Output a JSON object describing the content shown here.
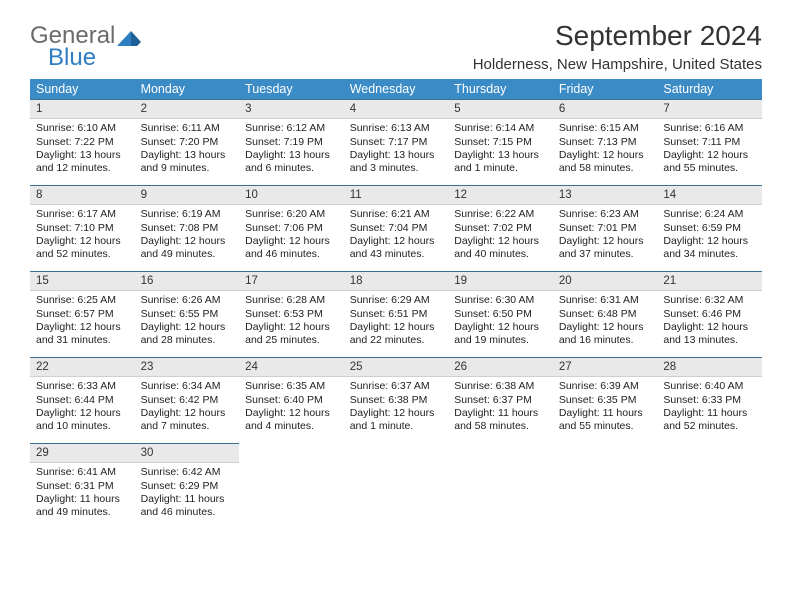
{
  "logo": {
    "word1": "General",
    "word2": "Blue"
  },
  "title": "September 2024",
  "location": "Holderness, New Hampshire, United States",
  "colors": {
    "header_bg": "#3b8bc6",
    "header_text": "#ffffff",
    "daynum_bg": "#e9e9e9",
    "daynum_border_top": "#3b6f93",
    "body_text": "#222222",
    "logo_gray": "#6b6b6b",
    "logo_blue": "#2f7ec2"
  },
  "weekdays": [
    "Sunday",
    "Monday",
    "Tuesday",
    "Wednesday",
    "Thursday",
    "Friday",
    "Saturday"
  ],
  "weeks": [
    [
      {
        "n": "1",
        "sunrise": "Sunrise: 6:10 AM",
        "sunset": "Sunset: 7:22 PM",
        "daylight": "Daylight: 13 hours and 12 minutes."
      },
      {
        "n": "2",
        "sunrise": "Sunrise: 6:11 AM",
        "sunset": "Sunset: 7:20 PM",
        "daylight": "Daylight: 13 hours and 9 minutes."
      },
      {
        "n": "3",
        "sunrise": "Sunrise: 6:12 AM",
        "sunset": "Sunset: 7:19 PM",
        "daylight": "Daylight: 13 hours and 6 minutes."
      },
      {
        "n": "4",
        "sunrise": "Sunrise: 6:13 AM",
        "sunset": "Sunset: 7:17 PM",
        "daylight": "Daylight: 13 hours and 3 minutes."
      },
      {
        "n": "5",
        "sunrise": "Sunrise: 6:14 AM",
        "sunset": "Sunset: 7:15 PM",
        "daylight": "Daylight: 13 hours and 1 minute."
      },
      {
        "n": "6",
        "sunrise": "Sunrise: 6:15 AM",
        "sunset": "Sunset: 7:13 PM",
        "daylight": "Daylight: 12 hours and 58 minutes."
      },
      {
        "n": "7",
        "sunrise": "Sunrise: 6:16 AM",
        "sunset": "Sunset: 7:11 PM",
        "daylight": "Daylight: 12 hours and 55 minutes."
      }
    ],
    [
      {
        "n": "8",
        "sunrise": "Sunrise: 6:17 AM",
        "sunset": "Sunset: 7:10 PM",
        "daylight": "Daylight: 12 hours and 52 minutes."
      },
      {
        "n": "9",
        "sunrise": "Sunrise: 6:19 AM",
        "sunset": "Sunset: 7:08 PM",
        "daylight": "Daylight: 12 hours and 49 minutes."
      },
      {
        "n": "10",
        "sunrise": "Sunrise: 6:20 AM",
        "sunset": "Sunset: 7:06 PM",
        "daylight": "Daylight: 12 hours and 46 minutes."
      },
      {
        "n": "11",
        "sunrise": "Sunrise: 6:21 AM",
        "sunset": "Sunset: 7:04 PM",
        "daylight": "Daylight: 12 hours and 43 minutes."
      },
      {
        "n": "12",
        "sunrise": "Sunrise: 6:22 AM",
        "sunset": "Sunset: 7:02 PM",
        "daylight": "Daylight: 12 hours and 40 minutes."
      },
      {
        "n": "13",
        "sunrise": "Sunrise: 6:23 AM",
        "sunset": "Sunset: 7:01 PM",
        "daylight": "Daylight: 12 hours and 37 minutes."
      },
      {
        "n": "14",
        "sunrise": "Sunrise: 6:24 AM",
        "sunset": "Sunset: 6:59 PM",
        "daylight": "Daylight: 12 hours and 34 minutes."
      }
    ],
    [
      {
        "n": "15",
        "sunrise": "Sunrise: 6:25 AM",
        "sunset": "Sunset: 6:57 PM",
        "daylight": "Daylight: 12 hours and 31 minutes."
      },
      {
        "n": "16",
        "sunrise": "Sunrise: 6:26 AM",
        "sunset": "Sunset: 6:55 PM",
        "daylight": "Daylight: 12 hours and 28 minutes."
      },
      {
        "n": "17",
        "sunrise": "Sunrise: 6:28 AM",
        "sunset": "Sunset: 6:53 PM",
        "daylight": "Daylight: 12 hours and 25 minutes."
      },
      {
        "n": "18",
        "sunrise": "Sunrise: 6:29 AM",
        "sunset": "Sunset: 6:51 PM",
        "daylight": "Daylight: 12 hours and 22 minutes."
      },
      {
        "n": "19",
        "sunrise": "Sunrise: 6:30 AM",
        "sunset": "Sunset: 6:50 PM",
        "daylight": "Daylight: 12 hours and 19 minutes."
      },
      {
        "n": "20",
        "sunrise": "Sunrise: 6:31 AM",
        "sunset": "Sunset: 6:48 PM",
        "daylight": "Daylight: 12 hours and 16 minutes."
      },
      {
        "n": "21",
        "sunrise": "Sunrise: 6:32 AM",
        "sunset": "Sunset: 6:46 PM",
        "daylight": "Daylight: 12 hours and 13 minutes."
      }
    ],
    [
      {
        "n": "22",
        "sunrise": "Sunrise: 6:33 AM",
        "sunset": "Sunset: 6:44 PM",
        "daylight": "Daylight: 12 hours and 10 minutes."
      },
      {
        "n": "23",
        "sunrise": "Sunrise: 6:34 AM",
        "sunset": "Sunset: 6:42 PM",
        "daylight": "Daylight: 12 hours and 7 minutes."
      },
      {
        "n": "24",
        "sunrise": "Sunrise: 6:35 AM",
        "sunset": "Sunset: 6:40 PM",
        "daylight": "Daylight: 12 hours and 4 minutes."
      },
      {
        "n": "25",
        "sunrise": "Sunrise: 6:37 AM",
        "sunset": "Sunset: 6:38 PM",
        "daylight": "Daylight: 12 hours and 1 minute."
      },
      {
        "n": "26",
        "sunrise": "Sunrise: 6:38 AM",
        "sunset": "Sunset: 6:37 PM",
        "daylight": "Daylight: 11 hours and 58 minutes."
      },
      {
        "n": "27",
        "sunrise": "Sunrise: 6:39 AM",
        "sunset": "Sunset: 6:35 PM",
        "daylight": "Daylight: 11 hours and 55 minutes."
      },
      {
        "n": "28",
        "sunrise": "Sunrise: 6:40 AM",
        "sunset": "Sunset: 6:33 PM",
        "daylight": "Daylight: 11 hours and 52 minutes."
      }
    ],
    [
      {
        "n": "29",
        "sunrise": "Sunrise: 6:41 AM",
        "sunset": "Sunset: 6:31 PM",
        "daylight": "Daylight: 11 hours and 49 minutes."
      },
      {
        "n": "30",
        "sunrise": "Sunrise: 6:42 AM",
        "sunset": "Sunset: 6:29 PM",
        "daylight": "Daylight: 11 hours and 46 minutes."
      },
      null,
      null,
      null,
      null,
      null
    ]
  ]
}
